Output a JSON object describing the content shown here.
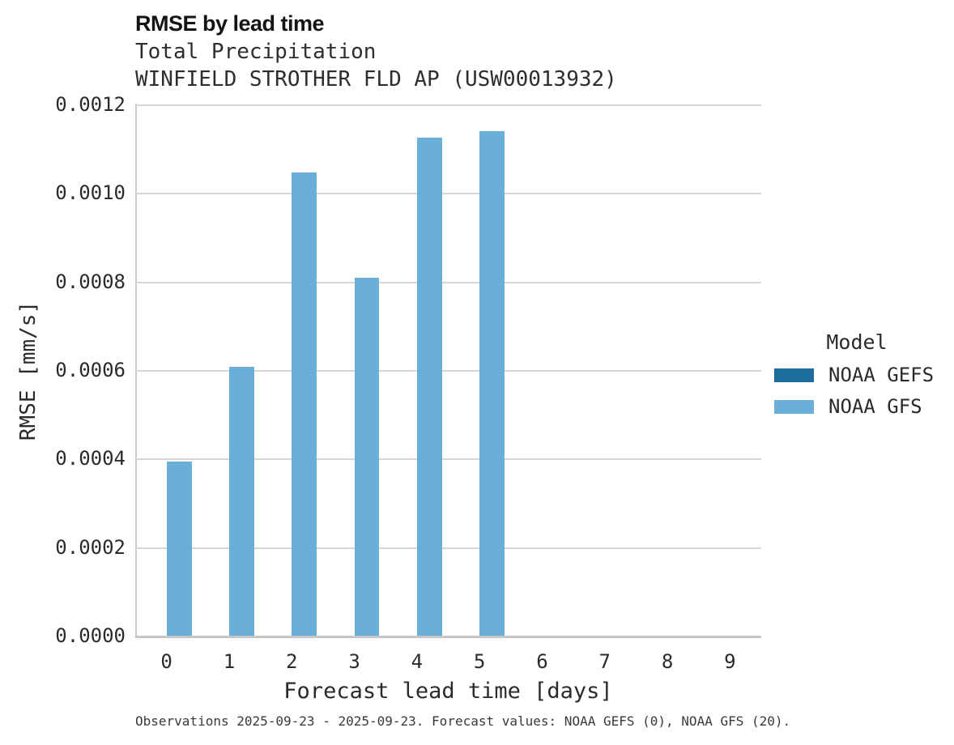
{
  "chart_data": {
    "type": "bar",
    "title": "RMSE by lead time",
    "subtitle_line1": "Total Precipitation",
    "subtitle_line2": "WINFIELD STROTHER FLD AP (USW00013932)",
    "xlabel": "Forecast lead time [days]",
    "ylabel": "RMSE [mm/s]",
    "categories": [
      "0",
      "1",
      "2",
      "3",
      "4",
      "5",
      "6",
      "7",
      "8",
      "9"
    ],
    "series": [
      {
        "name": "NOAA GEFS",
        "color": "#1c6d9e",
        "values": [
          null,
          null,
          null,
          null,
          null,
          null,
          null,
          null,
          null,
          null
        ]
      },
      {
        "name": "NOAA GFS",
        "color": "#69afd8",
        "values": [
          0.000396,
          0.00061,
          0.001049,
          0.000811,
          0.001127,
          0.001141,
          null,
          null,
          null,
          null
        ]
      }
    ],
    "ylim": [
      0,
      0.0012
    ],
    "y_ticks": [
      0.0,
      0.0002,
      0.0004,
      0.0006,
      0.0008,
      0.001,
      0.0012
    ],
    "y_tick_decimals": 4,
    "grid": true,
    "bar_group_width": 0.8,
    "legend": {
      "title": "Model",
      "position": "right"
    },
    "footnote": "Observations 2025-09-23 - 2025-09-23. Forecast values: NOAA GEFS (0), NOAA GFS (20)."
  },
  "colors": {
    "gridline": "#d6d6d6",
    "axis_line": "#c6c6c6",
    "spine": "#cacaca",
    "title_text": "#141414",
    "body_text": "#2b2b2b"
  }
}
